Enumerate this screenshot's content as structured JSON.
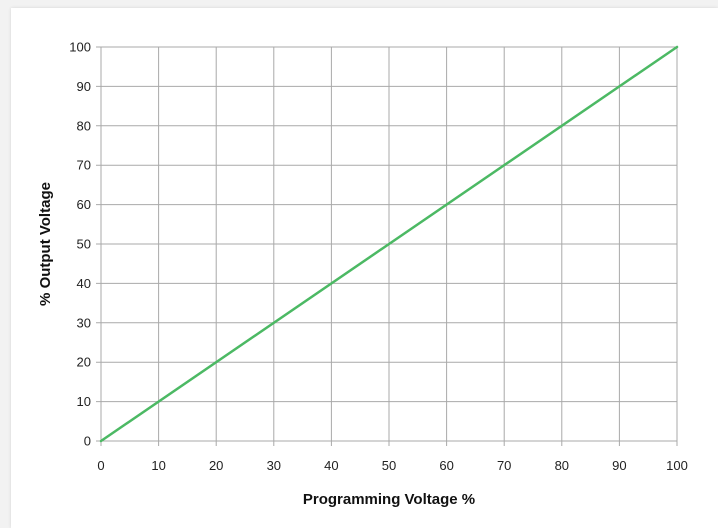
{
  "chart_data": {
    "type": "line",
    "title": "",
    "xlabel": "Programming Voltage %",
    "ylabel": "% Output Voltage",
    "xlim": [
      0,
      100
    ],
    "ylim": [
      0,
      100
    ],
    "x_ticks": [
      "0",
      "10",
      "20",
      "30",
      "40",
      "50",
      "60",
      "70",
      "80",
      "90",
      "100"
    ],
    "y_ticks": [
      "0",
      "10",
      "20",
      "30",
      "40",
      "50",
      "60",
      "70",
      "80",
      "90",
      "100"
    ],
    "grid": true,
    "legend": "none",
    "series": [
      {
        "color": "#4cb964",
        "x": [
          0,
          100
        ],
        "y": [
          0,
          100
        ]
      }
    ],
    "colors": {
      "grid": "#a9a9a9",
      "line": "#4cb964"
    }
  }
}
